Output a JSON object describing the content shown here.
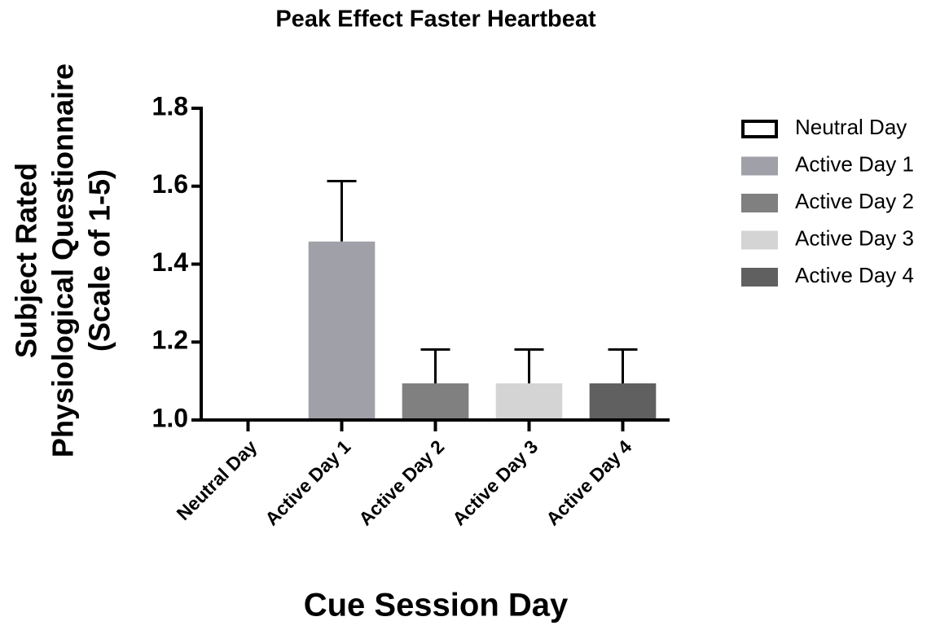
{
  "chart_data": {
    "type": "bar",
    "title": "Peak Effect Faster Heartbeat",
    "y_label": [
      "Subject Rated",
      "Physiological Questionnaire",
      "(Scale of 1-5)"
    ],
    "x_label": "Cue Session Day",
    "categories": [
      "Neutral Day",
      "Active Day 1",
      "Active Day 2",
      "Active Day 3",
      "Active Day 4"
    ],
    "values": [
      1.0,
      1.458,
      1.094,
      1.094,
      1.094
    ],
    "errors": [
      null,
      0.155,
      0.087,
      0.087,
      0.087
    ],
    "colors": [
      "#ffffff",
      "#a0a0a8",
      "#808080",
      "#d4d4d4",
      "#606060"
    ],
    "ylim": [
      1.0,
      1.8
    ],
    "yticks": [
      {
        "value": 1.0,
        "label": "1.0"
      },
      1.2,
      1.4,
      1.6,
      1.8
    ],
    "legend": "right"
  }
}
